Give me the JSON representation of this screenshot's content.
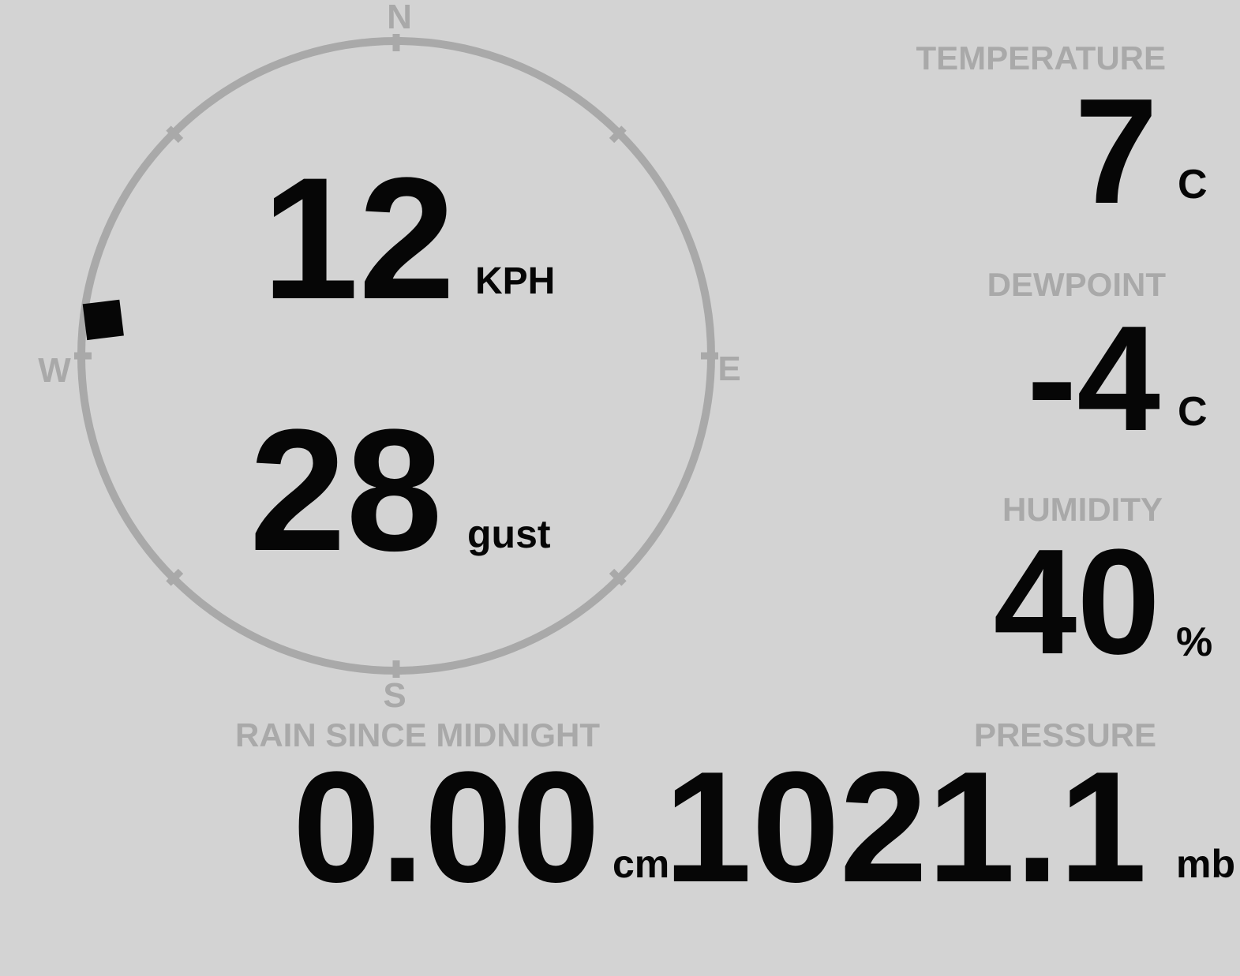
{
  "colors": {
    "background": "#d3d3d3",
    "muted_gray": "#a9a9a9",
    "value_black": "#060606"
  },
  "compass": {
    "north": "N",
    "east": "E",
    "south": "S",
    "west": "W"
  },
  "wind": {
    "speed": "12",
    "speed_unit": "KPH",
    "gust": "28",
    "gust_unit": "gust",
    "direction_deg": "277"
  },
  "temperature": {
    "label": "TEMPERATURE",
    "value": "7",
    "unit": "C"
  },
  "dewpoint": {
    "label": "DEWPOINT",
    "value": "-4",
    "unit": "C"
  },
  "humidity": {
    "label": "HUMIDITY",
    "value": "40",
    "unit": "%"
  },
  "rain": {
    "label": "RAIN SINCE MIDNIGHT",
    "value": "0.00",
    "unit": "cm"
  },
  "pressure": {
    "label": "PRESSURE",
    "value": "1021.1",
    "unit": "mb"
  }
}
